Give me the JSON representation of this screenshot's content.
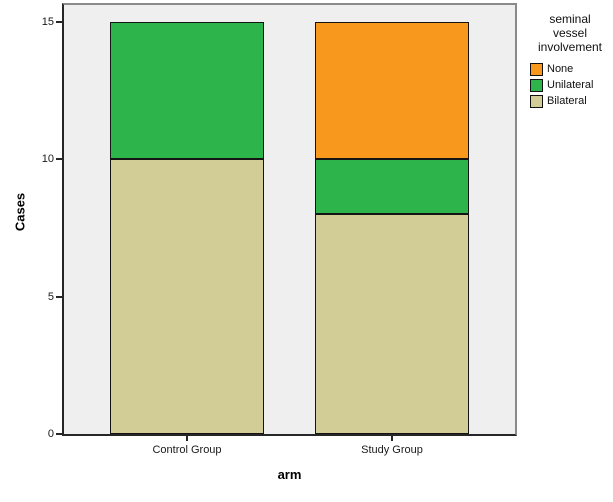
{
  "chart_data": {
    "type": "bar",
    "stacked": true,
    "xlabel": "arm",
    "ylabel": "Cases",
    "categories": [
      "Control Group",
      "Study Group"
    ],
    "series": [
      {
        "name": "Bilateral",
        "color": "#d2cd97",
        "values": [
          10,
          8
        ]
      },
      {
        "name": "Unilateral",
        "color": "#2db44a",
        "values": [
          5,
          2
        ]
      },
      {
        "name": "None",
        "color": "#f8981d",
        "values": [
          0,
          5
        ]
      }
    ],
    "ylim": [
      0,
      15
    ],
    "yticks": [
      0,
      5,
      10,
      15
    ],
    "grid": false,
    "plot_bg": "#efefef",
    "legend": {
      "position": "right",
      "title_lines": [
        "seminal",
        "vessel",
        "involvement"
      ],
      "entries": [
        {
          "label": "None",
          "color": "#f8981d"
        },
        {
          "label": "Unilateral",
          "color": "#2db44a"
        },
        {
          "label": "Bilateral",
          "color": "#d2cd97"
        }
      ]
    }
  }
}
